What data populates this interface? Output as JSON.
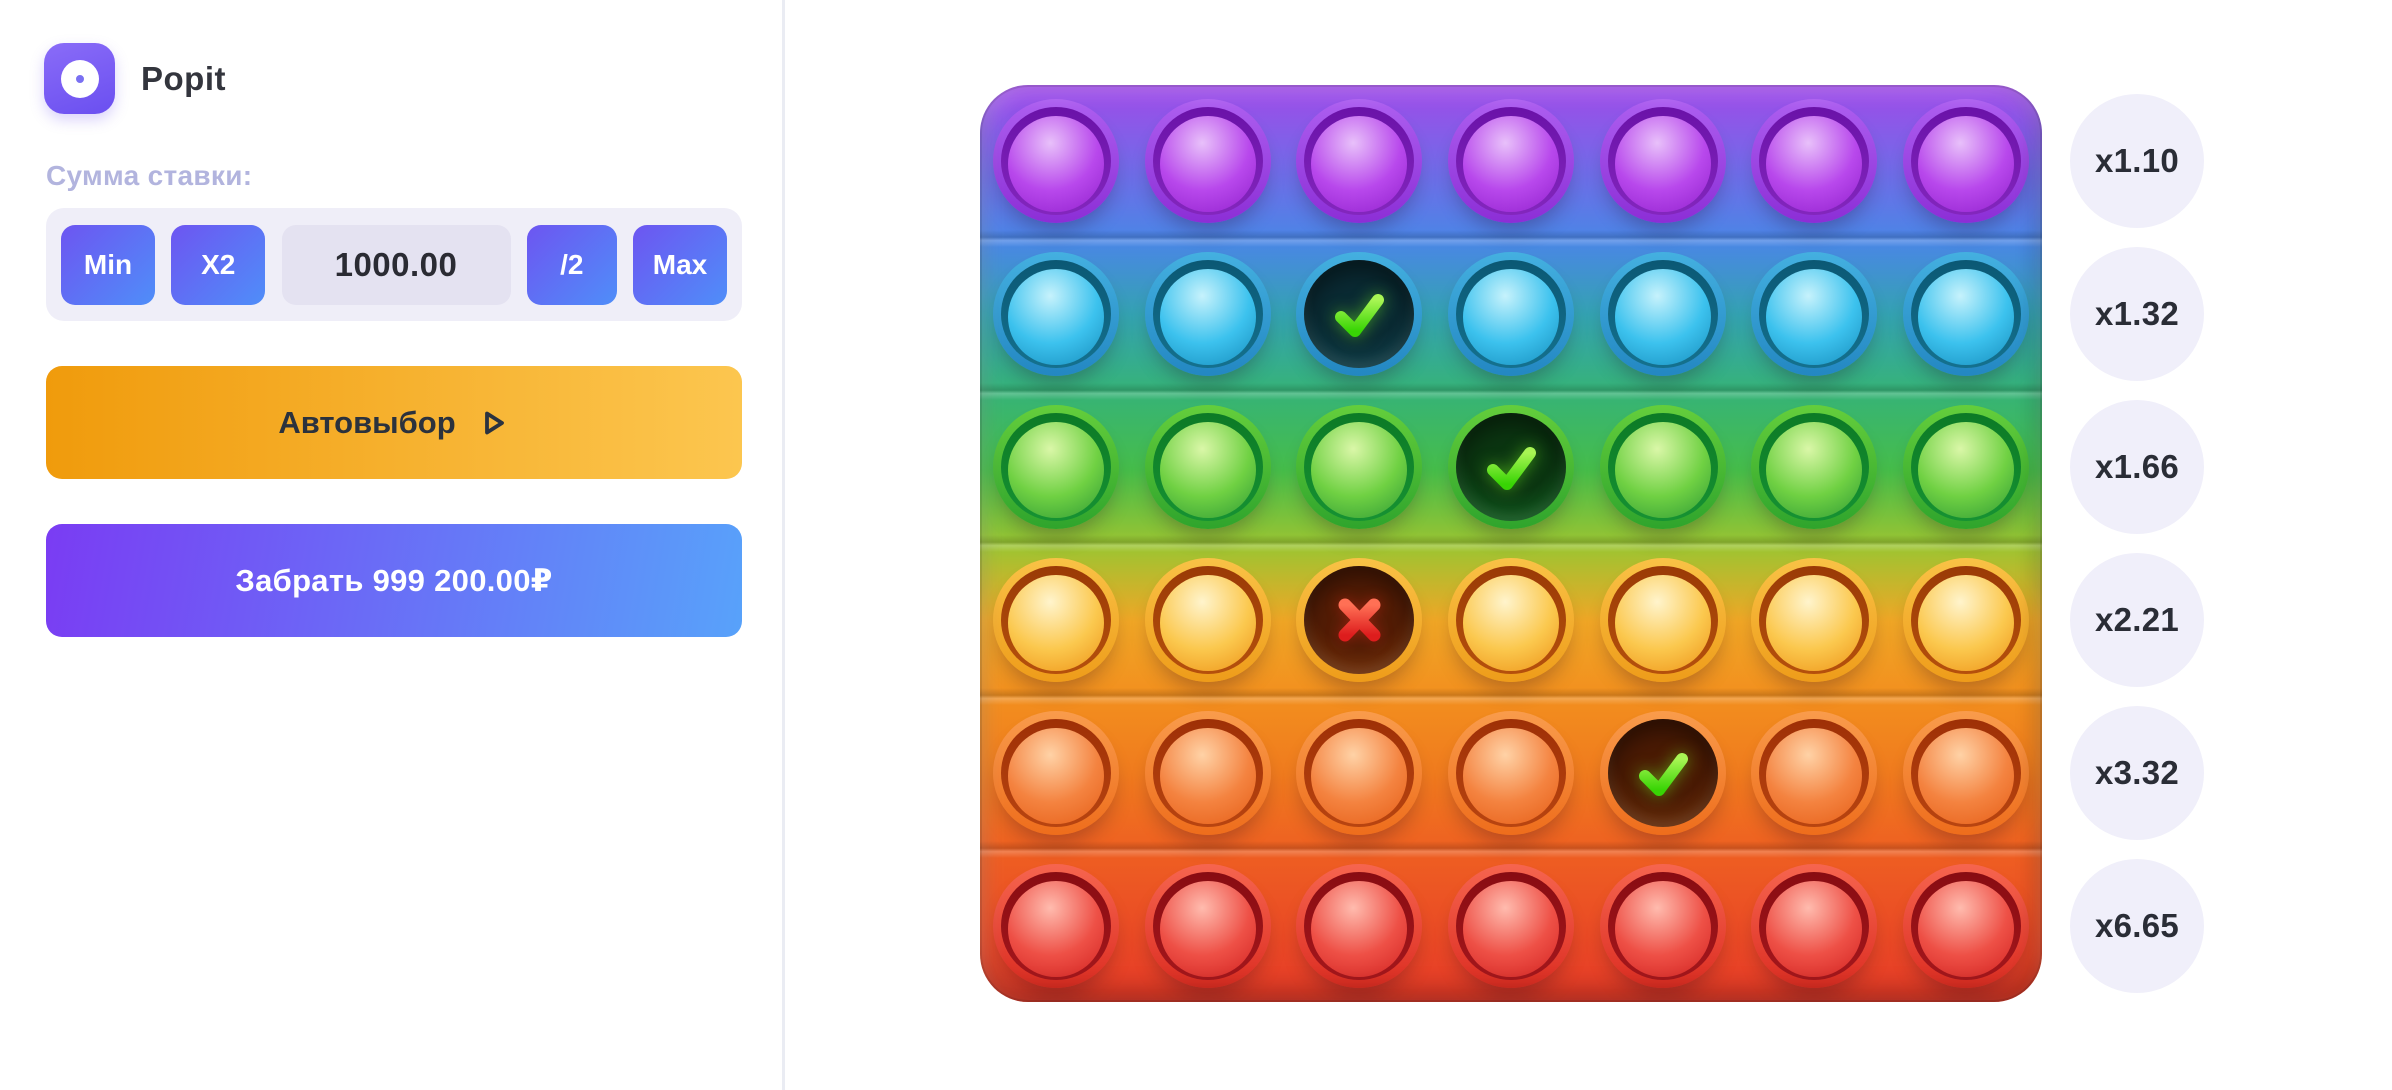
{
  "header": {
    "title": "Popit"
  },
  "bet": {
    "label": "Сумма ставки:",
    "min_label": "Min",
    "double_label": "X2",
    "amount": "1000.00",
    "half_label": "/2",
    "max_label": "Max"
  },
  "actions": {
    "autopick_label": "Автовыбор",
    "cashout_label": "Забрать 999 200.00₽"
  },
  "board": {
    "rows": 6,
    "cols": 7,
    "marks": [
      {
        "row": 1,
        "col": 2,
        "type": "check"
      },
      {
        "row": 2,
        "col": 3,
        "type": "check"
      },
      {
        "row": 3,
        "col": 2,
        "type": "cross"
      },
      {
        "row": 4,
        "col": 4,
        "type": "check"
      }
    ],
    "row_palette": [
      {
        "name": "purple",
        "rimA": "#ad5ff0",
        "rimB": "#8c2ed6",
        "ringD": "#6a12a8",
        "ringL": "#8326bd",
        "d1": "#e8c0fa",
        "d2": "#b848ec",
        "d3": "#8c1cc9",
        "hA": "#1e0a30",
        "hB": "#5a1a8c"
      },
      {
        "name": "cyan",
        "rimA": "#44b0e0",
        "rimB": "#2387c2",
        "ringD": "#0b5874",
        "ringL": "#14718e",
        "d1": "#c6f2fc",
        "d2": "#3cc2ee",
        "d3": "#1286b6",
        "hA": "#0a2a33",
        "hB": "#15555f"
      },
      {
        "name": "green",
        "rimA": "#64ce3c",
        "rimB": "#2fa42c",
        "ringD": "#0c7a26",
        "ringL": "#169232",
        "d1": "#daf7a8",
        "d2": "#70d143",
        "d3": "#269434",
        "hA": "#0b3511",
        "hB": "#17862e"
      },
      {
        "name": "gold",
        "rimA": "#f9c246",
        "rimB": "#ee9c1a",
        "ringD": "#9a3a06",
        "ringL": "#b5500c",
        "d1": "#fff4cc",
        "d2": "#fbc84e",
        "d3": "#ec8c10",
        "hA": "#521c05",
        "hB": "#96480e"
      },
      {
        "name": "orange",
        "rimA": "#f99c4c",
        "rimB": "#ee6d1c",
        "ringD": "#9e3006",
        "ringL": "#b84410",
        "d1": "#ffd2a6",
        "d2": "#f48340",
        "d3": "#e45a12",
        "hA": "#4a1a04",
        "hB": "#8a4410"
      },
      {
        "name": "red",
        "rimA": "#f6654f",
        "rimB": "#dc2d22",
        "ringD": "#880c12",
        "ringL": "#a5171c",
        "d1": "#ffbbae",
        "d2": "#ee5046",
        "d3": "#cf1e1d",
        "hA": "#330608",
        "hB": "#8c1418"
      }
    ]
  },
  "multipliers": [
    "x1.10",
    "x1.32",
    "x1.66",
    "x2.21",
    "x3.32",
    "x6.65"
  ],
  "colors": {
    "accent_purple_blue_start": "#6d55f1",
    "accent_purple_blue_end": "#4f8ef9",
    "autopick_start": "#f09b0c",
    "autopick_end": "#fcc64f",
    "cashout_start": "#7a3cf3",
    "cashout_end": "#58a2fa",
    "bet_bar_bg": "#efeef8",
    "bet_field_bg": "#e4e2f1",
    "muted_label": "#b2b4de",
    "dark_text": "#2a2b33",
    "multiplier_badge_bg": "#f0effa",
    "check_start": "#a8f554",
    "check_end": "#38d404",
    "cross_start": "#ff7055",
    "cross_end": "#dd1d1d"
  }
}
